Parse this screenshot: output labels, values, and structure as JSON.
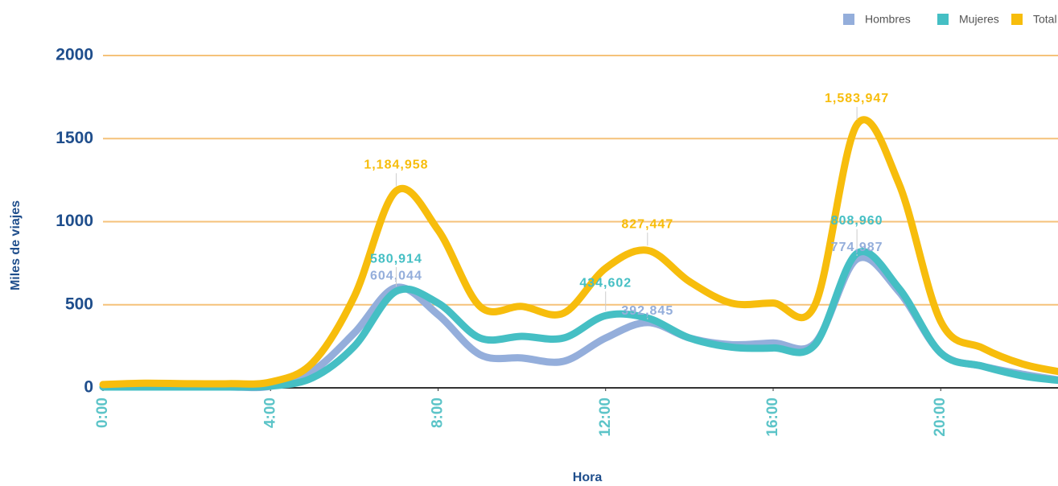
{
  "chart_data": {
    "type": "line",
    "x_label": "Hora",
    "y_label": "Miles de viajes",
    "x": [
      0,
      1,
      2,
      3,
      4,
      5,
      6,
      7,
      8,
      9,
      10,
      11,
      12,
      13,
      14,
      15,
      16,
      17,
      18,
      19,
      20,
      21,
      22,
      23
    ],
    "xlim": [
      0,
      22.8
    ],
    "xticks": [
      {
        "value": 0,
        "label": "0:00"
      },
      {
        "value": 4,
        "label": "4:00"
      },
      {
        "value": 8,
        "label": "8:00"
      },
      {
        "value": 12,
        "label": "12:00"
      },
      {
        "value": 16,
        "label": "16:00"
      },
      {
        "value": 20,
        "label": "20:00"
      }
    ],
    "ylim": [
      0,
      2000
    ],
    "yticks": [
      0,
      500,
      1000,
      1500,
      2000
    ],
    "grid": true,
    "legend": "top-right",
    "series": [
      {
        "name": "Hombres",
        "color": "#94aedb",
        "values": [
          5,
          5,
          5,
          5,
          10,
          100,
          330,
          604.044,
          440,
          200,
          180,
          160,
          300,
          392.845,
          300,
          260,
          270,
          270,
          774.987,
          580,
          210,
          130,
          80,
          40
        ],
        "value_labels": [
          null,
          null,
          null,
          null,
          null,
          null,
          null,
          "604,044",
          null,
          null,
          null,
          null,
          null,
          "392,845",
          null,
          null,
          null,
          null,
          "774,987",
          null,
          null,
          null,
          null,
          null
        ]
      },
      {
        "name": "Mujeres",
        "color": "#45bfc4",
        "values": [
          5,
          5,
          5,
          5,
          10,
          60,
          250,
          580.914,
          510,
          300,
          310,
          300,
          434.602,
          420,
          300,
          245,
          240,
          260,
          808.96,
          600,
          210,
          130,
          70,
          40
        ],
        "value_labels": [
          null,
          null,
          null,
          null,
          null,
          null,
          null,
          "580,914",
          null,
          null,
          null,
          null,
          "434,602",
          null,
          null,
          null,
          null,
          null,
          "808,960",
          null,
          null,
          null,
          null,
          null
        ]
      },
      {
        "name": "Total",
        "color": "#f7bd0c",
        "values": [
          20,
          28,
          25,
          25,
          35,
          150,
          550,
          1184.958,
          950,
          490,
          490,
          450,
          720,
          827.447,
          640,
          510,
          510,
          500,
          1583.947,
          1230,
          400,
          240,
          140,
          90
        ],
        "value_labels": [
          null,
          null,
          null,
          null,
          null,
          null,
          null,
          "1,184,958",
          null,
          null,
          null,
          null,
          null,
          "827,447",
          null,
          null,
          null,
          null,
          "1,583,947",
          null,
          null,
          null,
          null,
          null
        ]
      }
    ]
  }
}
